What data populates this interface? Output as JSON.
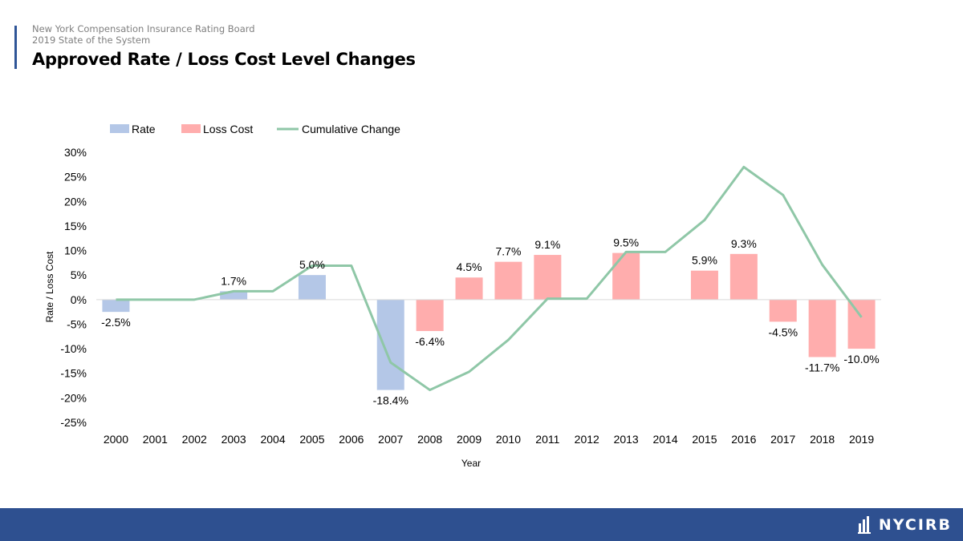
{
  "header": {
    "org_line1": "New York Compensation Insurance Rating Board",
    "org_line2": "2019 State of the System",
    "title": "Approved Rate / Loss Cost Level Changes"
  },
  "footer": {
    "logo_text": "NYCIRB"
  },
  "colors": {
    "accent": "#2f5597",
    "footer": "#2e5090",
    "rate": "#b4c7e7",
    "loss_cost": "#ffadad",
    "cumulative": "#8fc7a7",
    "axis_text": "#000000",
    "grid": "#d9d9d9"
  },
  "chart_data": {
    "type": "bar",
    "title": "",
    "xlabel": "Year",
    "ylabel": "Rate / Loss Cost",
    "ylim": [
      -25,
      30
    ],
    "y_ticks": [
      30,
      25,
      20,
      15,
      10,
      5,
      0,
      -5,
      -10,
      -15,
      -20,
      -25
    ],
    "y_tick_labels": [
      "30%",
      "25%",
      "20%",
      "15%",
      "10%",
      "5%",
      "0%",
      "-5%",
      "-10%",
      "-15%",
      "-20%",
      "-25%"
    ],
    "categories": [
      "2000",
      "2001",
      "2002",
      "2003",
      "2004",
      "2005",
      "2006",
      "2007",
      "2008",
      "2009",
      "2010",
      "2011",
      "2012",
      "2013",
      "2014",
      "2015",
      "2016",
      "2017",
      "2018",
      "2019"
    ],
    "legend_position": "top-left",
    "grid": false,
    "series": [
      {
        "name": "Rate",
        "kind": "bar",
        "values": [
          -2.5,
          null,
          null,
          1.7,
          null,
          5.0,
          null,
          -18.4,
          null,
          null,
          null,
          null,
          null,
          null,
          null,
          null,
          null,
          null,
          null,
          null
        ],
        "labels": [
          "-2.5%",
          "",
          "",
          "1.7%",
          "",
          "5.0%",
          "",
          "-18.4%",
          "",
          "",
          "",
          "",
          "",
          "",
          "",
          "",
          "",
          "",
          "",
          ""
        ]
      },
      {
        "name": "Loss Cost",
        "kind": "bar",
        "values": [
          null,
          null,
          null,
          null,
          null,
          null,
          null,
          null,
          -6.4,
          4.5,
          7.7,
          9.1,
          null,
          9.5,
          null,
          5.9,
          9.3,
          -4.5,
          -11.7,
          -10.0
        ],
        "labels": [
          "",
          "",
          "",
          "",
          "",
          "",
          "",
          "",
          "-6.4%",
          "4.5%",
          "7.7%",
          "9.1%",
          "",
          "9.5%",
          "",
          "5.9%",
          "9.3%",
          "-4.5%",
          "-11.7%",
          "-10.0%"
        ]
      },
      {
        "name": "Cumulative Change",
        "kind": "line",
        "values": [
          0,
          0,
          0,
          1.7,
          1.7,
          6.9,
          6.9,
          -12.8,
          -18.4,
          -14.7,
          -8.2,
          0.2,
          0.2,
          9.7,
          9.7,
          16.2,
          27.0,
          21.3,
          7.1,
          -3.6
        ]
      }
    ]
  }
}
